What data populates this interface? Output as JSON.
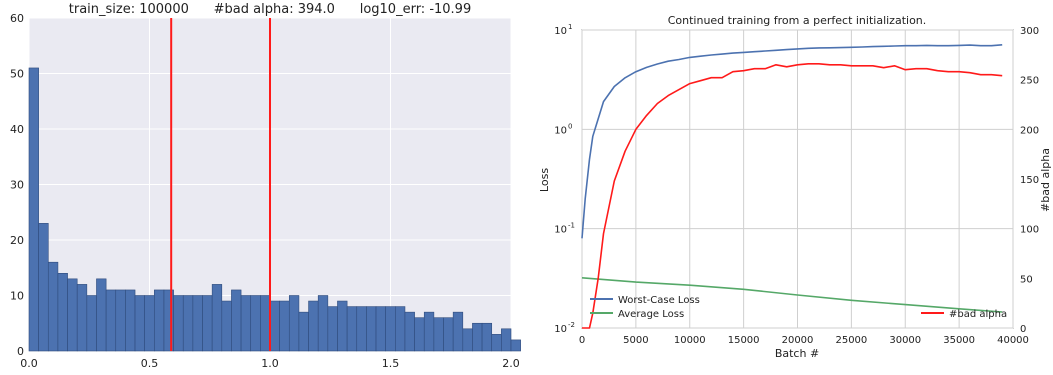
{
  "chart_data": [
    {
      "type": "bar",
      "title": "train_size: 100000      #bad alpha: 394.0      log10_err: -10.99",
      "xlabel": "",
      "ylabel": "",
      "xlim": [
        0,
        2.0
      ],
      "ylim": [
        0,
        60
      ],
      "grid": true,
      "background": "#eaeaf2",
      "bar_color": "#4c72b0",
      "line_color": "#ff1a1a",
      "bin_width": 0.04,
      "bin_start": 0.0,
      "values": [
        51,
        23,
        16,
        14,
        13,
        12,
        10,
        13,
        11,
        11,
        11,
        10,
        10,
        11,
        11,
        10,
        10,
        10,
        10,
        12,
        9,
        11,
        10,
        10,
        10,
        9,
        9,
        10,
        7,
        9,
        10,
        8,
        9,
        8,
        8,
        8,
        8,
        8,
        8,
        7,
        6,
        7,
        6,
        6,
        7,
        4,
        5,
        5,
        3,
        4,
        2
      ],
      "vlines": [
        0.59,
        1.0
      ],
      "xticks": [
        0.0,
        0.5,
        1.0,
        1.5,
        2.0
      ],
      "xtick_labels": [
        "0.0",
        "0.5",
        "1.0",
        "1.5",
        "2.0"
      ],
      "yticks": [
        0,
        10,
        20,
        30,
        40,
        50,
        60
      ],
      "ytick_labels": [
        "0",
        "10",
        "20",
        "30",
        "40",
        "50",
        "60"
      ]
    },
    {
      "type": "line",
      "title": "Continued training from a perfect initialization.",
      "xlabel": "Batch #",
      "ylabel": "Loss",
      "ylabel_right": "#bad alpha",
      "xlim": [
        0,
        40000
      ],
      "ylim": [
        0.01,
        10
      ],
      "yscale": "log",
      "ylim_right": [
        0,
        300
      ],
      "grid": true,
      "xticks": [
        0,
        5000,
        10000,
        15000,
        20000,
        25000,
        30000,
        35000,
        40000
      ],
      "xtick_labels": [
        "0",
        "5000",
        "10000",
        "15000",
        "20000",
        "25000",
        "30000",
        "35000",
        "40000"
      ],
      "yticks_left": [
        0.01,
        0.1,
        1,
        10
      ],
      "ytick_labels_left": [
        {
          "base": "10",
          "exp": "-2"
        },
        {
          "base": "10",
          "exp": "-1"
        },
        {
          "base": "10",
          "exp": "0"
        },
        {
          "base": "10",
          "exp": "1"
        }
      ],
      "yticks_right": [
        0,
        50,
        100,
        150,
        200,
        250,
        300
      ],
      "ytick_labels_right": [
        "0",
        "50",
        "100",
        "150",
        "200",
        "250",
        "300"
      ],
      "series": [
        {
          "name": "Worst-Case Loss",
          "axis": "left",
          "color": "#4c72b0",
          "x": [
            0,
            300,
            700,
            1000,
            2000,
            3000,
            4000,
            5000,
            6000,
            7000,
            8000,
            9000,
            10000,
            11000,
            12000,
            13000,
            14000,
            15000,
            16000,
            17000,
            18000,
            19000,
            20000,
            21000,
            22000,
            23000,
            24000,
            25000,
            26000,
            27000,
            28000,
            29000,
            30000,
            31000,
            32000,
            33000,
            34000,
            35000,
            36000,
            37000,
            38000,
            39000
          ],
          "y": [
            0.08,
            0.2,
            0.5,
            0.85,
            1.9,
            2.7,
            3.3,
            3.8,
            4.2,
            4.55,
            4.85,
            5.05,
            5.3,
            5.45,
            5.6,
            5.72,
            5.85,
            5.95,
            6.05,
            6.15,
            6.25,
            6.35,
            6.45,
            6.55,
            6.6,
            6.62,
            6.65,
            6.7,
            6.75,
            6.8,
            6.85,
            6.9,
            6.95,
            6.95,
            7.0,
            6.95,
            6.95,
            7.0,
            7.05,
            6.95,
            6.95,
            7.1
          ]
        },
        {
          "name": "Average Loss",
          "axis": "left",
          "color": "#55a868",
          "x": [
            0,
            5000,
            10000,
            15000,
            20000,
            25000,
            30000,
            35000,
            39000
          ],
          "y": [
            0.032,
            0.029,
            0.027,
            0.0245,
            0.0215,
            0.019,
            0.0172,
            0.0156,
            0.0145
          ]
        },
        {
          "name": "#bad alpha",
          "axis": "right",
          "color": "#ff1a1a",
          "x": [
            0,
            700,
            1000,
            1500,
            2000,
            3000,
            4000,
            5000,
            6000,
            7000,
            8000,
            9000,
            10000,
            11000,
            12000,
            13000,
            14000,
            15000,
            16000,
            17000,
            18000,
            19000,
            20000,
            21000,
            22000,
            23000,
            24000,
            25000,
            26000,
            27000,
            28000,
            29000,
            30000,
            31000,
            32000,
            33000,
            34000,
            35000,
            36000,
            37000,
            38000,
            39000
          ],
          "y": [
            0,
            0,
            15,
            50,
            95,
            148,
            178,
            200,
            214,
            226,
            234,
            240,
            246,
            249,
            252,
            252,
            258,
            259,
            261,
            261,
            265,
            263,
            265,
            266,
            266,
            265,
            265,
            264,
            264,
            264,
            262,
            264,
            260,
            261,
            261,
            259,
            258,
            258,
            257,
            255,
            255,
            254
          ]
        }
      ],
      "legend_left_position": "lower-left",
      "legend_right_position": "lower-right"
    }
  ]
}
